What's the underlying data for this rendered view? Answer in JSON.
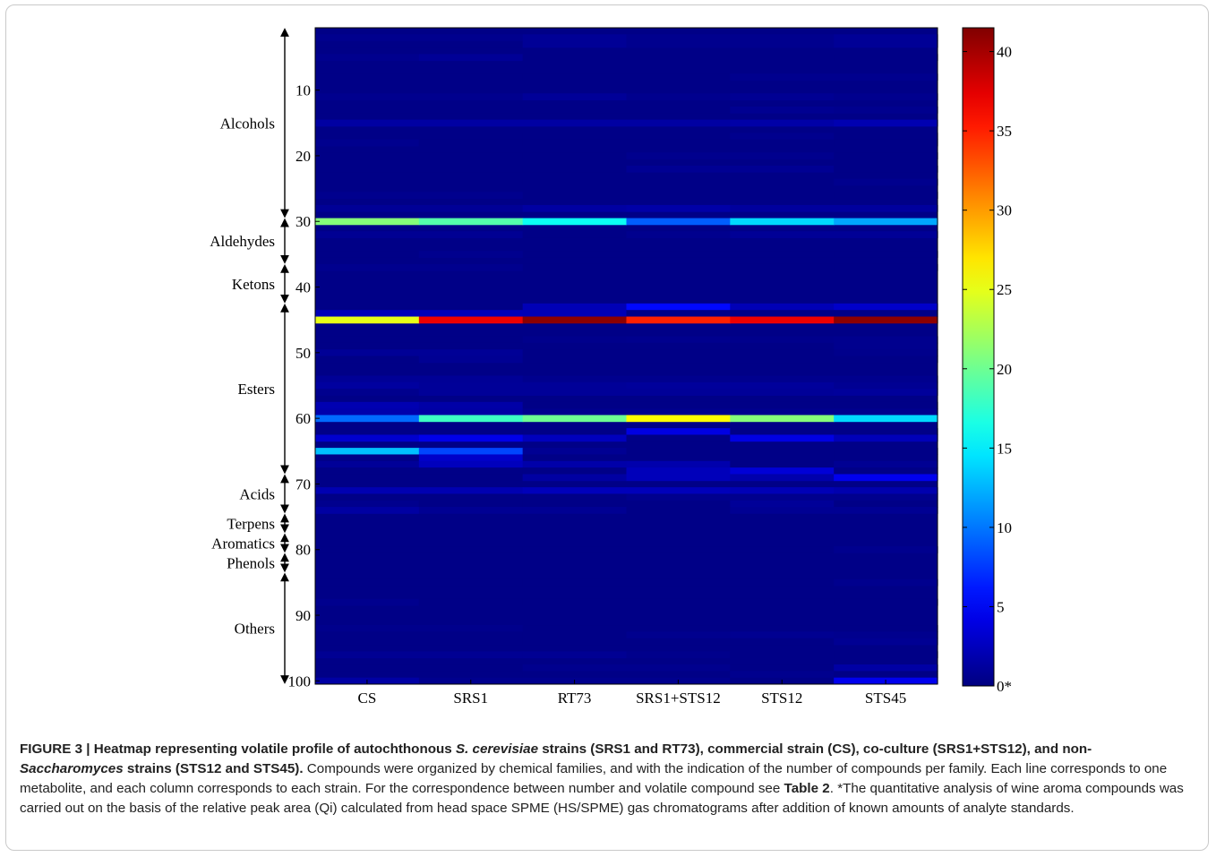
{
  "chart_data": {
    "type": "heatmap",
    "columns": [
      "CS",
      "SRS1",
      "RT73",
      "SRS1+STS12",
      "STS12",
      "STS45"
    ],
    "y_ticks": [
      10,
      20,
      30,
      40,
      50,
      60,
      70,
      80,
      90,
      100
    ],
    "ylim": [
      1,
      100
    ],
    "families": [
      {
        "name": "Alcohols",
        "start": 1,
        "end": 29
      },
      {
        "name": "Aldehydes",
        "start": 30,
        "end": 36
      },
      {
        "name": "Ketons",
        "start": 37,
        "end": 42
      },
      {
        "name": "Esters",
        "start": 43,
        "end": 68
      },
      {
        "name": "Acids",
        "start": 69,
        "end": 74
      },
      {
        "name": "Terpens",
        "start": 75,
        "end": 77
      },
      {
        "name": "Aromatics",
        "start": 78,
        "end": 80
      },
      {
        "name": "Phenols",
        "start": 81,
        "end": 83
      },
      {
        "name": "Others",
        "start": 84,
        "end": 100
      }
    ],
    "colorbar": {
      "min": 0,
      "max": 41.5,
      "ticks": [
        {
          "value": 0,
          "label": "0*"
        },
        {
          "value": 5,
          "label": "5"
        },
        {
          "value": 10,
          "label": "10"
        },
        {
          "value": 15,
          "label": "15"
        },
        {
          "value": 20,
          "label": "20"
        },
        {
          "value": 25,
          "label": "25"
        },
        {
          "value": 30,
          "label": "30"
        },
        {
          "value": 35,
          "label": "35"
        },
        {
          "value": 40,
          "label": "40"
        }
      ]
    },
    "colormap": "jet",
    "background_value": 0.3,
    "cells": [
      {
        "row": 2,
        "values": [
          0.6,
          0.6,
          0.9,
          0.6,
          0.6,
          0.9
        ]
      },
      {
        "row": 3,
        "values": [
          0.3,
          0.3,
          0.9,
          0.6,
          0.6,
          0.9
        ]
      },
      {
        "row": 5,
        "values": [
          0.6,
          0.9,
          0.3,
          0.3,
          0.3,
          0.3
        ]
      },
      {
        "row": 8,
        "values": [
          0.3,
          0.3,
          0.3,
          0.3,
          0.6,
          0.6
        ]
      },
      {
        "row": 11,
        "values": [
          0.6,
          0.6,
          1.0,
          0.6,
          0.8,
          0.6
        ]
      },
      {
        "row": 13,
        "values": [
          0.3,
          0.3,
          0.3,
          0.3,
          0.7,
          0.6
        ]
      },
      {
        "row": 15,
        "values": [
          1.4,
          1.4,
          1.4,
          1.4,
          1.6,
          2.0
        ]
      },
      {
        "row": 17,
        "values": [
          0.3,
          0.3,
          0.3,
          0.3,
          0.6,
          0.3
        ]
      },
      {
        "row": 18,
        "values": [
          0.6,
          0.3,
          0.3,
          0.3,
          0.3,
          0.3
        ]
      },
      {
        "row": 20,
        "values": [
          0.3,
          0.3,
          0.3,
          0.6,
          0.6,
          0.3
        ]
      },
      {
        "row": 22,
        "values": [
          0.3,
          0.3,
          0.3,
          0.8,
          0.8,
          0.3
        ]
      },
      {
        "row": 24,
        "values": [
          0.3,
          0.3,
          0.3,
          0.3,
          0.3,
          0.6
        ]
      },
      {
        "row": 26,
        "values": [
          0.6,
          0.6,
          0.3,
          0.3,
          0.3,
          0.3
        ]
      },
      {
        "row": 28,
        "values": [
          0.9,
          0.9,
          1.4,
          1.6,
          1.2,
          1.2
        ]
      },
      {
        "row": 30,
        "values": [
          21,
          19,
          16,
          9,
          14,
          12
        ]
      },
      {
        "row": 32,
        "values": [
          0.8,
          0.8,
          0.3,
          0.6,
          0.9,
          0.9
        ]
      },
      {
        "row": 35,
        "values": [
          0.3,
          0.6,
          0.3,
          0.3,
          0.3,
          0.3
        ]
      },
      {
        "row": 37,
        "values": [
          0.6,
          0.6,
          0.3,
          0.3,
          0.3,
          0.3
        ]
      },
      {
        "row": 43,
        "values": [
          0.3,
          0.3,
          2.2,
          5.5,
          2.2,
          3.0
        ]
      },
      {
        "row": 44,
        "values": [
          2.3,
          2.3,
          2.2,
          0.3,
          0.3,
          0.3
        ]
      },
      {
        "row": 45,
        "values": [
          25,
          37,
          41,
          35,
          37,
          41
        ]
      },
      {
        "row": 48,
        "values": [
          0.3,
          0.3,
          0.5,
          0.6,
          0.5,
          0.6
        ]
      },
      {
        "row": 49,
        "values": [
          0.3,
          0.3,
          0.3,
          0.3,
          0.3,
          0.6
        ]
      },
      {
        "row": 50,
        "values": [
          0.9,
          0.9,
          0.3,
          0.3,
          0.3,
          0.5
        ]
      },
      {
        "row": 51,
        "values": [
          0.3,
          0.8,
          0.3,
          0.3,
          0.3,
          0.3
        ]
      },
      {
        "row": 54,
        "values": [
          0.9,
          0.9,
          0.6,
          0.6,
          0.6,
          0.6
        ]
      },
      {
        "row": 55,
        "values": [
          1.3,
          1.0,
          1.0,
          1.1,
          1.1,
          0.8
        ]
      },
      {
        "row": 56,
        "values": [
          0.6,
          1.0,
          1.0,
          1.0,
          1.0,
          1.1
        ]
      },
      {
        "row": 58,
        "values": [
          2.0,
          1.6,
          0.3,
          0.3,
          0.3,
          0.3
        ]
      },
      {
        "row": 59,
        "values": [
          1.8,
          1.5,
          0.6,
          0.6,
          0.6,
          0.6
        ]
      },
      {
        "row": 60,
        "values": [
          9.5,
          18,
          20,
          26,
          21,
          14
        ]
      },
      {
        "row": 62,
        "values": [
          0.3,
          0.3,
          0.3,
          4.0,
          0.3,
          0.3
        ]
      },
      {
        "row": 63,
        "values": [
          3.2,
          4.3,
          2.5,
          0.3,
          4.0,
          2.3
        ]
      },
      {
        "row": 65,
        "values": [
          13,
          8,
          0.8,
          0.3,
          0.3,
          0.3
        ]
      },
      {
        "row": 66,
        "values": [
          0.3,
          3.0,
          0.3,
          0.3,
          0.3,
          0.3
        ]
      },
      {
        "row": 67,
        "values": [
          1.0,
          2.5,
          1.7,
          1.8,
          0.3,
          0.8
        ]
      },
      {
        "row": 68,
        "values": [
          0.3,
          0.3,
          0.3,
          2.4,
          3.5,
          0.3
        ]
      },
      {
        "row": 69,
        "values": [
          0.3,
          0.3,
          1.4,
          2.4,
          1.8,
          4.5
        ]
      },
      {
        "row": 71,
        "values": [
          2.0,
          2.0,
          2.4,
          2.4,
          2.2,
          1.9
        ]
      },
      {
        "row": 72,
        "values": [
          0.3,
          0.3,
          0.3,
          0.6,
          0.6,
          0.6
        ]
      },
      {
        "row": 73,
        "values": [
          0.6,
          0.3,
          0.3,
          0.3,
          1.0,
          0.3
        ]
      },
      {
        "row": 74,
        "values": [
          1.4,
          0.8,
          0.8,
          0.3,
          0.8,
          0.8
        ]
      },
      {
        "row": 80,
        "values": [
          0.3,
          0.3,
          0.3,
          0.3,
          0.3,
          0.6
        ]
      },
      {
        "row": 85,
        "values": [
          0.3,
          0.3,
          0.3,
          0.3,
          0.3,
          0.6
        ]
      },
      {
        "row": 88,
        "values": [
          0.6,
          0.3,
          0.3,
          0.3,
          0.3,
          0.3
        ]
      },
      {
        "row": 92,
        "values": [
          0.5,
          0.5,
          0.3,
          0.3,
          0.3,
          0.3
        ]
      },
      {
        "row": 93,
        "values": [
          0.3,
          0.3,
          0.3,
          0.6,
          0.7,
          0.6
        ]
      },
      {
        "row": 94,
        "values": [
          0.3,
          0.3,
          0.3,
          0.3,
          0.3,
          0.8
        ]
      },
      {
        "row": 96,
        "values": [
          0.8,
          0.8,
          0.8,
          0.5,
          0.3,
          0.3
        ]
      },
      {
        "row": 98,
        "values": [
          0.3,
          0.3,
          0.6,
          0.6,
          0.3,
          1.5
        ]
      },
      {
        "row": 99,
        "values": [
          0.3,
          0.3,
          0.3,
          0.3,
          0.6,
          0.3
        ]
      },
      {
        "row": 100,
        "values": [
          1.5,
          0.6,
          0.6,
          0.6,
          0.3,
          4.5
        ]
      }
    ]
  },
  "caption": {
    "label": "FIGURE 3",
    "separator": " | ",
    "title_parts": [
      {
        "text": "Heatmap representing volatile profile of autochthonous ",
        "italic": false
      },
      {
        "text": "S. cerevisiae",
        "italic": true
      },
      {
        "text": " strains (SRS1 and RT73), commercial strain (CS), co-culture (SRS1+STS12), and non-",
        "italic": false
      },
      {
        "text": "Saccharomyces",
        "italic": true
      },
      {
        "text": " strains (STS12 and STS45).",
        "italic": false
      }
    ],
    "body_1": " Compounds were organized by chemical families, and with the indication of the number of compounds per family. Each line corresponds to one metabolite, and each column corresponds to each strain. For the correspondence between number and volatile compound see ",
    "table_ref": "Table 2",
    "body_2": ". *The quantitative analysis of wine aroma compounds was carried out on the basis of the relative peak area (Qi) calculated from head space SPME (HS/SPME) gas chromatograms after addition of known amounts of analyte standards."
  }
}
